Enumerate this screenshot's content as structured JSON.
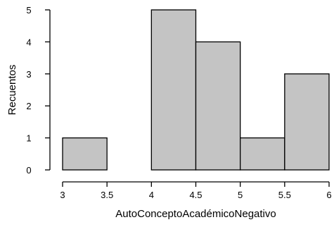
{
  "chart_data": {
    "type": "bar",
    "subtype": "histogram",
    "title": "",
    "xlabel": "AutoConceptoAcadémicoNegativo",
    "ylabel": "Recuentos",
    "xlim": [
      3,
      6
    ],
    "ylim": [
      0,
      5
    ],
    "x_ticks": [
      "3",
      "3.5",
      "4",
      "4.5",
      "5",
      "5.5",
      "6"
    ],
    "y_ticks": [
      "0",
      "1",
      "2",
      "3",
      "4",
      "5"
    ],
    "bins": [
      {
        "x0": 3.0,
        "x1": 3.5,
        "count": 1
      },
      {
        "x0": 3.5,
        "x1": 4.0,
        "count": 0
      },
      {
        "x0": 4.0,
        "x1": 4.5,
        "count": 5
      },
      {
        "x0": 4.5,
        "x1": 5.0,
        "count": 4
      },
      {
        "x0": 5.0,
        "x1": 5.5,
        "count": 1
      },
      {
        "x0": 5.5,
        "x1": 6.0,
        "count": 3
      }
    ],
    "bar_fill": "#c4c4c4",
    "bar_stroke": "#000000",
    "grid": false,
    "legend": "none"
  }
}
